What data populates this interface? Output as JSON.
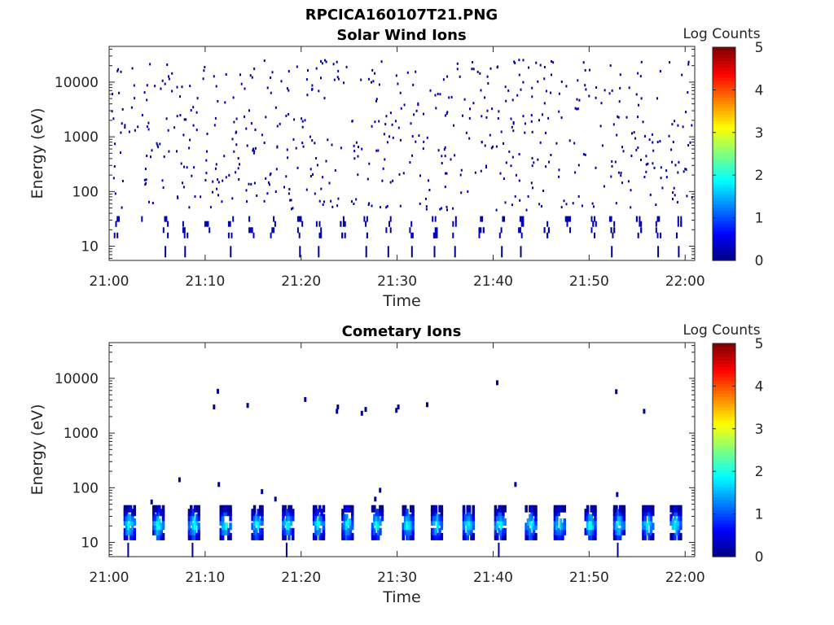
{
  "figure_title": "RPCICA160107T21.PNG",
  "chart_data": [
    {
      "type": "heatmap",
      "title": "Solar Wind Ions",
      "xlabel": "Time",
      "ylabel": "Energy (eV)",
      "y_scale": "log",
      "ylim": [
        5.5,
        45000
      ],
      "xlim": [
        "21:00",
        "22:01"
      ],
      "x_ticks": [
        "21:00",
        "21:10",
        "21:20",
        "21:30",
        "21:40",
        "21:50",
        "22:00"
      ],
      "y_ticks": [
        "10",
        "100",
        "1000",
        "10000"
      ],
      "colorbar": {
        "label": "Log Counts",
        "ticks": [
          "0",
          "1",
          "2",
          "3",
          "4",
          "5"
        ],
        "range": [
          0,
          5
        ],
        "colormap": "jet"
      },
      "description_of_values": "Sparse single counts (Log Counts about 0) scattered from ~50 eV to ~30000 eV; denser near-zero counts at 10-40 eV recurring in bursts roughly every 2.5 minutes."
    },
    {
      "type": "heatmap",
      "title": "Cometary Ions",
      "xlabel": "Time",
      "ylabel": "Energy (eV)",
      "y_scale": "log",
      "ylim": [
        5.5,
        45000
      ],
      "xlim": [
        "21:00",
        "22:01"
      ],
      "x_ticks": [
        "21:00",
        "21:10",
        "21:20",
        "21:30",
        "21:40",
        "21:50",
        "22:00"
      ],
      "y_ticks": [
        "10",
        "100",
        "1000",
        "10000"
      ],
      "colorbar": {
        "label": "Log Counts",
        "ticks": [
          "0",
          "1",
          "2",
          "3",
          "4",
          "5"
        ],
        "range": [
          0,
          5
        ],
        "colormap": "jet"
      },
      "description_of_values": "Periodic ion bursts at 12-45 eV roughly every 3 minutes with Log Counts up to ~2; a few isolated counts near 100-8000 eV."
    }
  ]
}
